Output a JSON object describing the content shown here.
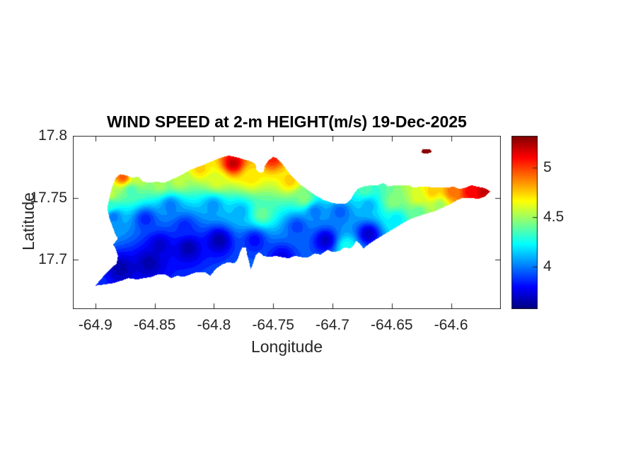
{
  "figure": {
    "background": "#ffffff"
  },
  "colors": {
    "axis_line": "#262626",
    "tick_text": "#262626",
    "title_text": "#000000",
    "colormap_name": "jet"
  },
  "chart_data": {
    "type": "heatmap",
    "subtype": "filled-contour-geographic-map",
    "title": "WIND SPEED at 2-m HEIGHT(m/s) 19-Dec-2025",
    "xlabel": "Longitude",
    "ylabel": "Latitude",
    "units": "m/s",
    "date_shown": "19-Dec-2025",
    "grid": false,
    "xlim": [
      -64.919,
      -64.558
    ],
    "ylim": [
      17.66,
      17.8
    ],
    "xticks": [
      -64.9,
      -64.85,
      -64.8,
      -64.75,
      -64.7,
      -64.65,
      -64.6
    ],
    "xtick_labels": [
      "-64.9",
      "-64.85",
      "-64.8",
      "-64.75",
      "-64.7",
      "-64.65",
      "-64.6"
    ],
    "yticks": [
      17.8,
      17.75,
      17.7
    ],
    "ytick_labels": [
      "17.8",
      "17.75",
      "17.7"
    ],
    "colorbar": {
      "vmin": 3.57,
      "vmax": 5.32,
      "ticks": [
        5,
        4.5,
        4
      ],
      "tick_labels": [
        "5",
        "4.5",
        "4"
      ],
      "colormap": "jet",
      "position": "right"
    },
    "contour_step": 0.05,
    "island_outline": [
      [
        -64.9,
        17.679
      ],
      [
        -64.89,
        17.69
      ],
      [
        -64.882,
        17.697
      ],
      [
        -64.881,
        17.703
      ],
      [
        -64.883,
        17.709
      ],
      [
        -64.885,
        17.712
      ],
      [
        -64.881,
        17.717
      ],
      [
        -64.883,
        17.72
      ],
      [
        -64.888,
        17.733
      ],
      [
        -64.89,
        17.741
      ],
      [
        -64.888,
        17.751
      ],
      [
        -64.886,
        17.758
      ],
      [
        -64.883,
        17.766
      ],
      [
        -64.879,
        17.769
      ],
      [
        -64.874,
        17.768
      ],
      [
        -64.869,
        17.766
      ],
      [
        -64.864,
        17.767
      ],
      [
        -64.86,
        17.763
      ],
      [
        -64.854,
        17.762
      ],
      [
        -64.848,
        17.763
      ],
      [
        -64.842,
        17.762
      ],
      [
        -64.835,
        17.765
      ],
      [
        -64.828,
        17.768
      ],
      [
        -64.819,
        17.773
      ],
      [
        -64.81,
        17.776
      ],
      [
        -64.803,
        17.779
      ],
      [
        -64.795,
        17.782
      ],
      [
        -64.788,
        17.784
      ],
      [
        -64.782,
        17.783
      ],
      [
        -64.775,
        17.781
      ],
      [
        -64.768,
        17.779
      ],
      [
        -64.765,
        17.777
      ],
      [
        -64.764,
        17.772
      ],
      [
        -64.761,
        17.77
      ],
      [
        -64.758,
        17.771
      ],
      [
        -64.757,
        17.776
      ],
      [
        -64.754,
        17.78
      ],
      [
        -64.75,
        17.783
      ],
      [
        -64.747,
        17.782
      ],
      [
        -64.743,
        17.778
      ],
      [
        -64.739,
        17.773
      ],
      [
        -64.735,
        17.768
      ],
      [
        -64.73,
        17.763
      ],
      [
        -64.725,
        17.759
      ],
      [
        -64.719,
        17.755
      ],
      [
        -64.713,
        17.751
      ],
      [
        -64.707,
        17.748
      ],
      [
        -64.701,
        17.746
      ],
      [
        -64.695,
        17.745
      ],
      [
        -64.689,
        17.745
      ],
      [
        -64.685,
        17.748
      ],
      [
        -64.682,
        17.753
      ],
      [
        -64.679,
        17.757
      ],
      [
        -64.674,
        17.759
      ],
      [
        -64.668,
        17.76
      ],
      [
        -64.662,
        17.76
      ],
      [
        -64.657,
        17.762
      ],
      [
        -64.653,
        17.759
      ],
      [
        -64.648,
        17.76
      ],
      [
        -64.642,
        17.76
      ],
      [
        -64.636,
        17.76
      ],
      [
        -64.631,
        17.758
      ],
      [
        -64.626,
        17.759
      ],
      [
        -64.62,
        17.759
      ],
      [
        -64.615,
        17.758
      ],
      [
        -64.609,
        17.758
      ],
      [
        -64.603,
        17.758
      ],
      [
        -64.598,
        17.759
      ],
      [
        -64.593,
        17.757
      ],
      [
        -64.588,
        17.758
      ],
      [
        -64.583,
        17.76
      ],
      [
        -64.578,
        17.759
      ],
      [
        -64.573,
        17.758
      ],
      [
        -64.57,
        17.757
      ],
      [
        -64.567,
        17.755
      ],
      [
        -64.571,
        17.751
      ],
      [
        -64.577,
        17.749
      ],
      [
        -64.584,
        17.75
      ],
      [
        -64.59,
        17.75
      ],
      [
        -64.595,
        17.748
      ],
      [
        -64.6,
        17.745
      ],
      [
        -64.607,
        17.742
      ],
      [
        -64.614,
        17.739
      ],
      [
        -64.621,
        17.737
      ],
      [
        -64.628,
        17.735
      ],
      [
        -64.636,
        17.732
      ],
      [
        -64.643,
        17.728
      ],
      [
        -64.65,
        17.724
      ],
      [
        -64.657,
        17.72
      ],
      [
        -64.664,
        17.716
      ],
      [
        -64.67,
        17.712
      ],
      [
        -64.674,
        17.709
      ],
      [
        -64.677,
        17.713
      ],
      [
        -64.68,
        17.715
      ],
      [
        -64.682,
        17.712
      ],
      [
        -64.685,
        17.709
      ],
      [
        -64.69,
        17.71
      ],
      [
        -64.694,
        17.707
      ],
      [
        -64.7,
        17.706
      ],
      [
        -64.704,
        17.708
      ],
      [
        -64.71,
        17.704
      ],
      [
        -64.715,
        17.705
      ],
      [
        -64.72,
        17.702
      ],
      [
        -64.726,
        17.702
      ],
      [
        -64.732,
        17.703
      ],
      [
        -64.737,
        17.701
      ],
      [
        -64.743,
        17.702
      ],
      [
        -64.748,
        17.703
      ],
      [
        -64.753,
        17.702
      ],
      [
        -64.758,
        17.703
      ],
      [
        -64.762,
        17.706
      ],
      [
        -64.765,
        17.703
      ],
      [
        -64.767,
        17.697
      ],
      [
        -64.769,
        17.692
      ],
      [
        -64.77,
        17.697
      ],
      [
        -64.772,
        17.704
      ],
      [
        -64.773,
        17.71
      ],
      [
        -64.776,
        17.71
      ],
      [
        -64.778,
        17.706
      ],
      [
        -64.78,
        17.7
      ],
      [
        -64.783,
        17.697
      ],
      [
        -64.788,
        17.698
      ],
      [
        -64.793,
        17.696
      ],
      [
        -64.798,
        17.693
      ],
      [
        -64.803,
        17.687
      ],
      [
        -64.808,
        17.69
      ],
      [
        -64.814,
        17.69
      ],
      [
        -64.82,
        17.688
      ],
      [
        -64.826,
        17.686
      ],
      [
        -64.831,
        17.687
      ],
      [
        -64.836,
        17.685
      ],
      [
        -64.841,
        17.688
      ],
      [
        -64.847,
        17.688
      ],
      [
        -64.853,
        17.686
      ],
      [
        -64.859,
        17.685
      ],
      [
        -64.865,
        17.684
      ],
      [
        -64.872,
        17.685
      ],
      [
        -64.878,
        17.683
      ],
      [
        -64.885,
        17.681
      ],
      [
        -64.892,
        17.68
      ]
    ],
    "buck_island_outline": [
      [
        -64.625,
        17.787
      ],
      [
        -64.624,
        17.789
      ],
      [
        -64.621,
        17.789
      ],
      [
        -64.618,
        17.789
      ],
      [
        -64.616,
        17.787
      ],
      [
        -64.619,
        17.786
      ],
      [
        -64.622,
        17.786
      ],
      [
        -64.624,
        17.786
      ]
    ],
    "wind_samples": [
      [
        -64.9,
        17.68,
        3.85
      ],
      [
        -64.879,
        17.693,
        3.65
      ],
      [
        -64.855,
        17.698,
        3.65
      ],
      [
        -64.885,
        17.735,
        4.0
      ],
      [
        -64.889,
        17.744,
        4.3
      ],
      [
        -64.888,
        17.753,
        4.55
      ],
      [
        -64.877,
        17.767,
        4.95
      ],
      [
        -64.864,
        17.766,
        4.55
      ],
      [
        -64.87,
        17.756,
        4.35
      ],
      [
        -64.846,
        17.761,
        4.5
      ],
      [
        -64.83,
        17.764,
        4.55
      ],
      [
        -64.812,
        17.774,
        4.75
      ],
      [
        -64.837,
        17.744,
        4.0
      ],
      [
        -64.858,
        17.733,
        3.85
      ],
      [
        -64.825,
        17.727,
        3.85
      ],
      [
        -64.846,
        17.712,
        3.7
      ],
      [
        -64.822,
        17.71,
        3.65
      ],
      [
        -64.796,
        17.716,
        3.65
      ],
      [
        -64.784,
        17.778,
        5.2
      ],
      [
        -64.751,
        17.782,
        5.05
      ],
      [
        -64.798,
        17.764,
        4.6
      ],
      [
        -64.769,
        17.767,
        4.7
      ],
      [
        -64.801,
        17.744,
        4.05
      ],
      [
        -64.778,
        17.739,
        4.1
      ],
      [
        -64.76,
        17.737,
        4.4
      ],
      [
        -64.766,
        17.716,
        3.8
      ],
      [
        -64.743,
        17.702,
        3.75
      ],
      [
        -64.736,
        17.764,
        4.75
      ],
      [
        -64.724,
        17.75,
        4.45
      ],
      [
        -64.73,
        17.727,
        3.9
      ],
      [
        -64.706,
        17.716,
        3.7
      ],
      [
        -64.67,
        17.721,
        3.7
      ],
      [
        -64.694,
        17.739,
        3.95
      ],
      [
        -64.67,
        17.744,
        4.1
      ],
      [
        -64.7,
        17.756,
        4.3
      ],
      [
        -64.673,
        17.757,
        4.35
      ],
      [
        -64.649,
        17.747,
        4.45
      ],
      [
        -64.628,
        17.75,
        4.6
      ],
      [
        -64.616,
        17.755,
        4.75
      ],
      [
        -64.599,
        17.755,
        4.9
      ],
      [
        -64.584,
        17.755,
        5.1
      ],
      [
        -64.572,
        17.755,
        5.2
      ],
      [
        -64.646,
        17.733,
        4.2
      ],
      [
        -64.628,
        17.739,
        4.4
      ],
      [
        -64.688,
        17.711,
        4.25
      ],
      [
        -64.715,
        17.739,
        4.0
      ],
      [
        -64.61,
        17.744,
        4.5
      ],
      [
        -64.622,
        17.787,
        5.3
      ]
    ]
  }
}
